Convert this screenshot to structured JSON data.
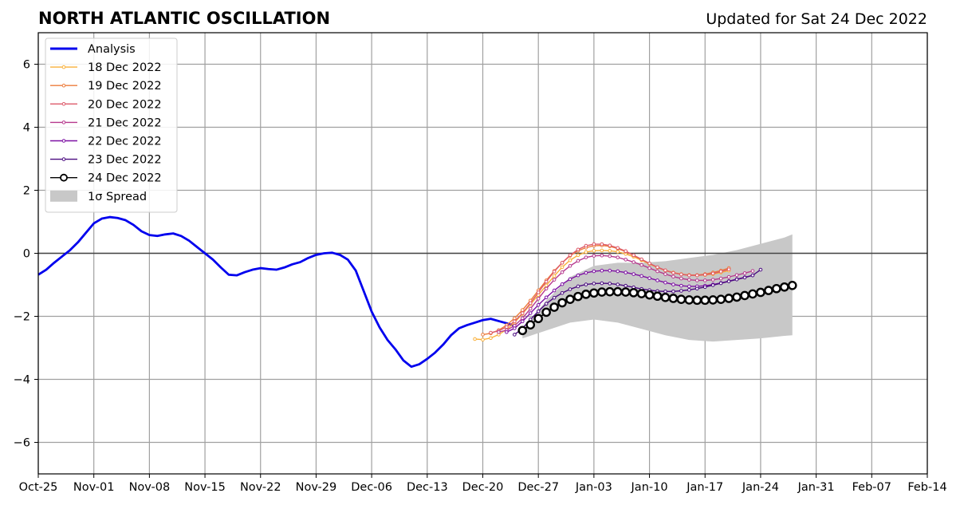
{
  "title": "NORTH ATLANTIC OSCILLATION",
  "subtitle": "Updated for Sat 24 Dec 2022",
  "chart_data": {
    "type": "line",
    "title": "NORTH ATLANTIC OSCILLATION",
    "subtitle": "Updated for Sat 24 Dec 2022",
    "xlabel": "",
    "ylabel": "",
    "x_range": [
      "2022-10-25",
      "2023-02-14"
    ],
    "ylim": [
      -7,
      7
    ],
    "grid": true,
    "legend_position": "top-left",
    "x_ticks": [
      "Oct-25",
      "Nov-01",
      "Nov-08",
      "Nov-15",
      "Nov-22",
      "Nov-29",
      "Dec-06",
      "Dec-13",
      "Dec-20",
      "Dec-27",
      "Jan-03",
      "Jan-10",
      "Jan-17",
      "Jan-24",
      "Jan-31",
      "Feb-07",
      "Feb-14"
    ],
    "x_tick_dates": [
      "2022-10-25",
      "2022-11-01",
      "2022-11-08",
      "2022-11-15",
      "2022-11-22",
      "2022-11-29",
      "2022-12-06",
      "2022-12-13",
      "2022-12-20",
      "2022-12-27",
      "2023-01-03",
      "2023-01-10",
      "2023-01-17",
      "2023-01-24",
      "2023-01-31",
      "2023-02-07",
      "2023-02-14"
    ],
    "y_ticks": [
      -6,
      -4,
      -2,
      0,
      2,
      4,
      6
    ],
    "y_tick_labels": [
      "−6",
      "−4",
      "−2",
      "0",
      "2",
      "4",
      "6"
    ],
    "legend": [
      "Analysis",
      "18 Dec 2022",
      "19 Dec 2022",
      "20 Dec 2022",
      "21 Dec 2022",
      "22 Dec 2022",
      "23 Dec 2022",
      "24 Dec 2022",
      "1σ Spread"
    ],
    "analysis": {
      "name": "Analysis",
      "color": "#0000ee",
      "x": [
        "2022-10-25",
        "2022-10-26",
        "2022-10-27",
        "2022-10-28",
        "2022-10-29",
        "2022-10-30",
        "2022-10-31",
        "2022-11-01",
        "2022-11-02",
        "2022-11-03",
        "2022-11-04",
        "2022-11-05",
        "2022-11-06",
        "2022-11-07",
        "2022-11-08",
        "2022-11-09",
        "2022-11-10",
        "2022-11-11",
        "2022-11-12",
        "2022-11-13",
        "2022-11-14",
        "2022-11-15",
        "2022-11-16",
        "2022-11-17",
        "2022-11-18",
        "2022-11-19",
        "2022-11-20",
        "2022-11-21",
        "2022-11-22",
        "2022-11-23",
        "2022-11-24",
        "2022-11-25",
        "2022-11-26",
        "2022-11-27",
        "2022-11-28",
        "2022-11-29",
        "2022-11-30",
        "2022-12-01",
        "2022-12-02",
        "2022-12-03",
        "2022-12-04",
        "2022-12-05",
        "2022-12-06",
        "2022-12-07",
        "2022-12-08",
        "2022-12-09",
        "2022-12-10",
        "2022-12-11",
        "2022-12-12",
        "2022-12-13",
        "2022-12-14",
        "2022-12-15",
        "2022-12-16",
        "2022-12-17",
        "2022-12-18",
        "2022-12-19",
        "2022-12-20",
        "2022-12-21",
        "2022-12-22",
        "2022-12-23",
        "2022-12-24"
      ],
      "values": [
        -0.68,
        -0.52,
        -0.3,
        -0.1,
        0.1,
        0.35,
        0.65,
        0.95,
        1.1,
        1.15,
        1.12,
        1.05,
        0.9,
        0.7,
        0.58,
        0.55,
        0.6,
        0.63,
        0.55,
        0.4,
        0.2,
        0.0,
        -0.2,
        -0.45,
        -0.68,
        -0.7,
        -0.6,
        -0.52,
        -0.47,
        -0.5,
        -0.52,
        -0.45,
        -0.35,
        -0.28,
        -0.15,
        -0.05,
        0.0,
        0.02,
        -0.05,
        -0.2,
        -0.55,
        -1.2,
        -1.85,
        -2.35,
        -2.75,
        -3.05,
        -3.4,
        -3.6,
        -3.52,
        -3.35,
        -3.15,
        -2.9,
        -2.6,
        -2.38,
        -2.28,
        -2.2,
        -2.12,
        -2.08,
        -2.15,
        -2.22,
        -2.3
      ]
    },
    "forecasts": [
      {
        "name": "18 Dec 2022",
        "color": "#f9b03a",
        "start": "2022-12-19",
        "values": [
          -2.72,
          -2.74,
          -2.69,
          -2.58,
          -2.42,
          -2.2,
          -1.92,
          -1.62,
          -1.32,
          -1.02,
          -0.72,
          -0.44,
          -0.22,
          -0.06,
          0.04,
          0.08,
          0.09,
          0.08,
          0.05,
          -0.02,
          -0.11,
          -0.22,
          -0.34,
          -0.45,
          -0.54,
          -0.61,
          -0.66,
          -0.69,
          -0.7,
          -0.69,
          -0.66,
          -0.61,
          -0.55
        ]
      },
      {
        "name": "19 Dec 2022",
        "color": "#ed7c3b",
        "start": "2022-12-20",
        "values": [
          -2.58,
          -2.54,
          -2.44,
          -2.28,
          -2.06,
          -1.8,
          -1.5,
          -1.18,
          -0.86,
          -0.56,
          -0.3,
          -0.08,
          0.08,
          0.18,
          0.24,
          0.25,
          0.22,
          0.15,
          0.05,
          -0.07,
          -0.2,
          -0.33,
          -0.45,
          -0.55,
          -0.62,
          -0.67,
          -0.69,
          -0.69,
          -0.66,
          -0.61,
          -0.55,
          -0.47
        ]
      },
      {
        "name": "20 Dec 2022",
        "color": "#dd5a6a",
        "start": "2022-12-21",
        "values": [
          -2.52,
          -2.46,
          -2.34,
          -2.16,
          -1.9,
          -1.58,
          -1.24,
          -0.9,
          -0.58,
          -0.3,
          -0.06,
          0.12,
          0.24,
          0.29,
          0.29,
          0.25,
          0.17,
          0.07,
          -0.06,
          -0.19,
          -0.32,
          -0.44,
          -0.54,
          -0.62,
          -0.67,
          -0.7,
          -0.7,
          -0.68,
          -0.64,
          -0.58,
          -0.51
        ]
      },
      {
        "name": "21 Dec 2022",
        "color": "#b6388d",
        "start": "2022-12-22",
        "values": [
          -2.5,
          -2.44,
          -2.3,
          -2.06,
          -1.76,
          -1.44,
          -1.12,
          -0.84,
          -0.6,
          -0.4,
          -0.24,
          -0.13,
          -0.08,
          -0.07,
          -0.09,
          -0.13,
          -0.2,
          -0.28,
          -0.37,
          -0.47,
          -0.57,
          -0.66,
          -0.74,
          -0.8,
          -0.84,
          -0.86,
          -0.86,
          -0.84,
          -0.8,
          -0.75,
          -0.69,
          -0.63,
          -0.56
        ]
      },
      {
        "name": "22 Dec 2022",
        "color": "#7d10a3",
        "start": "2022-12-23",
        "values": [
          -2.5,
          -2.38,
          -2.16,
          -1.9,
          -1.64,
          -1.4,
          -1.18,
          -0.98,
          -0.82,
          -0.7,
          -0.62,
          -0.57,
          -0.55,
          -0.55,
          -0.57,
          -0.61,
          -0.66,
          -0.72,
          -0.79,
          -0.86,
          -0.93,
          -0.99,
          -1.03,
          -1.05,
          -1.05,
          -1.03,
          -0.99,
          -0.94,
          -0.88,
          -0.82,
          -0.76,
          -0.7
        ]
      },
      {
        "name": "23 Dec 2022",
        "color": "#4a0a80",
        "start": "2022-12-24",
        "values": [
          -2.58,
          -2.38,
          -2.1,
          -1.84,
          -1.6,
          -1.41,
          -1.26,
          -1.14,
          -1.05,
          -0.99,
          -0.96,
          -0.95,
          -0.96,
          -0.99,
          -1.03,
          -1.08,
          -1.13,
          -1.17,
          -1.2,
          -1.21,
          -1.21,
          -1.19,
          -1.16,
          -1.12,
          -1.07,
          -1.01,
          -0.95,
          -0.89,
          -0.83,
          -0.77,
          -0.7,
          -0.52
        ]
      },
      {
        "name": "24 Dec 2022",
        "color": "#000000",
        "start": "2022-12-25",
        "values": [
          -2.45,
          -2.27,
          -2.07,
          -1.87,
          -1.71,
          -1.57,
          -1.46,
          -1.37,
          -1.3,
          -1.26,
          -1.23,
          -1.22,
          -1.22,
          -1.23,
          -1.25,
          -1.28,
          -1.32,
          -1.36,
          -1.4,
          -1.43,
          -1.46,
          -1.48,
          -1.49,
          -1.49,
          -1.48,
          -1.46,
          -1.43,
          -1.39,
          -1.34,
          -1.29,
          -1.24,
          -1.18,
          -1.12,
          -1.07,
          -1.02
        ]
      }
    ],
    "spread": {
      "name": "1σ Spread",
      "color": "#c8c8c8",
      "x": [
        "2022-12-25",
        "2022-12-28",
        "2022-12-31",
        "2023-01-03",
        "2023-01-06",
        "2023-01-09",
        "2023-01-12",
        "2023-01-15",
        "2023-01-18",
        "2023-01-21",
        "2023-01-24",
        "2023-01-27",
        "2023-01-28"
      ],
      "upper": [
        -2.45,
        -1.5,
        -0.75,
        -0.4,
        -0.3,
        -0.3,
        -0.25,
        -0.15,
        -0.05,
        0.1,
        0.3,
        0.5,
        0.6
      ],
      "lower": [
        -2.7,
        -2.45,
        -2.2,
        -2.1,
        -2.2,
        -2.4,
        -2.6,
        -2.75,
        -2.8,
        -2.75,
        -2.7,
        -2.62,
        -2.6
      ]
    }
  }
}
